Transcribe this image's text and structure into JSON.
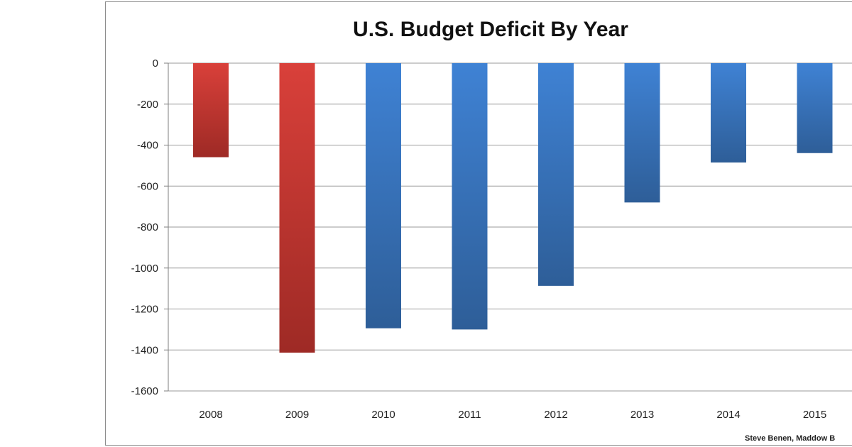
{
  "chart_data": {
    "type": "bar",
    "title": "U.S. Budget Deficit By Year",
    "xlabel": "",
    "ylabel": "",
    "categories": [
      "2008",
      "2009",
      "2010",
      "2011",
      "2012",
      "2013",
      "2014",
      "2015"
    ],
    "values": [
      -459,
      -1413,
      -1294,
      -1300,
      -1087,
      -680,
      -485,
      -439
    ],
    "bar_colors": [
      "#c0392b",
      "#c0392b",
      "#3a78c2",
      "#3a78c2",
      "#3a78c2",
      "#3a78c2",
      "#3a78c2",
      "#3a78c2"
    ],
    "ylim": [
      -1600,
      0
    ],
    "yticks": [
      0,
      -200,
      -400,
      -600,
      -800,
      -1000,
      -1200,
      -1400,
      -1600
    ],
    "grid": true,
    "legend": "none",
    "source": "Steve Benen, Maddow B"
  },
  "colors": {
    "red_top": "#d9403a",
    "red_bottom": "#9e2a25",
    "blue_top": "#3f82d4",
    "blue_bottom": "#2e5e98",
    "gridline": "#9a9a9a",
    "axis": "#7f7f7f"
  }
}
